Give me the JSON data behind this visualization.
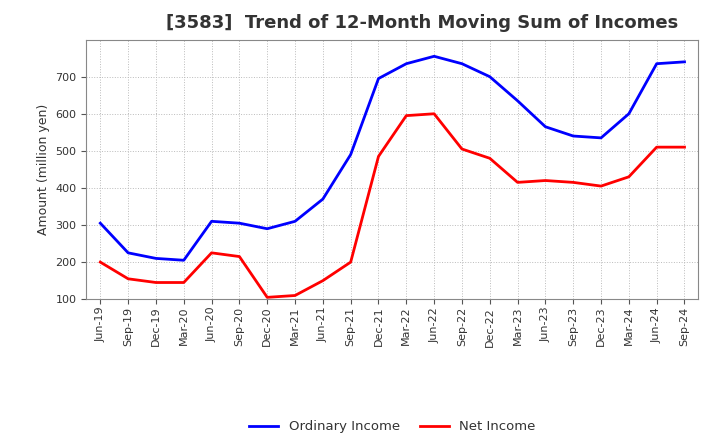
{
  "title": "[3583]  Trend of 12-Month Moving Sum of Incomes",
  "ylabel": "Amount (million yen)",
  "ylim": [
    100,
    800
  ],
  "yticks": [
    100,
    200,
    300,
    400,
    500,
    600,
    700
  ],
  "labels": [
    "Jun-19",
    "Sep-19",
    "Dec-19",
    "Mar-20",
    "Jun-20",
    "Sep-20",
    "Dec-20",
    "Mar-21",
    "Jun-21",
    "Sep-21",
    "Dec-21",
    "Mar-22",
    "Jun-22",
    "Sep-22",
    "Dec-22",
    "Mar-23",
    "Jun-23",
    "Sep-23",
    "Dec-23",
    "Mar-24",
    "Jun-24",
    "Sep-24"
  ],
  "ordinary_income_values": [
    305,
    225,
    210,
    205,
    310,
    305,
    290,
    310,
    370,
    490,
    695,
    735,
    755,
    735,
    700,
    635,
    565,
    540,
    535,
    600,
    735,
    740
  ],
  "net_income_values": [
    200,
    155,
    145,
    145,
    225,
    215,
    105,
    110,
    150,
    200,
    485,
    595,
    600,
    505,
    480,
    415,
    420,
    415,
    405,
    430,
    510,
    510
  ],
  "ordinary_color": "#0000FF",
  "net_color": "#FF0000",
  "background_color": "#FFFFFF",
  "grid_color": "#BBBBBB",
  "legend_ordinary": "Ordinary Income",
  "legend_net": "Net Income",
  "title_fontsize": 13,
  "axis_label_fontsize": 9,
  "tick_fontsize": 8,
  "legend_fontsize": 9.5,
  "line_width": 2.0
}
